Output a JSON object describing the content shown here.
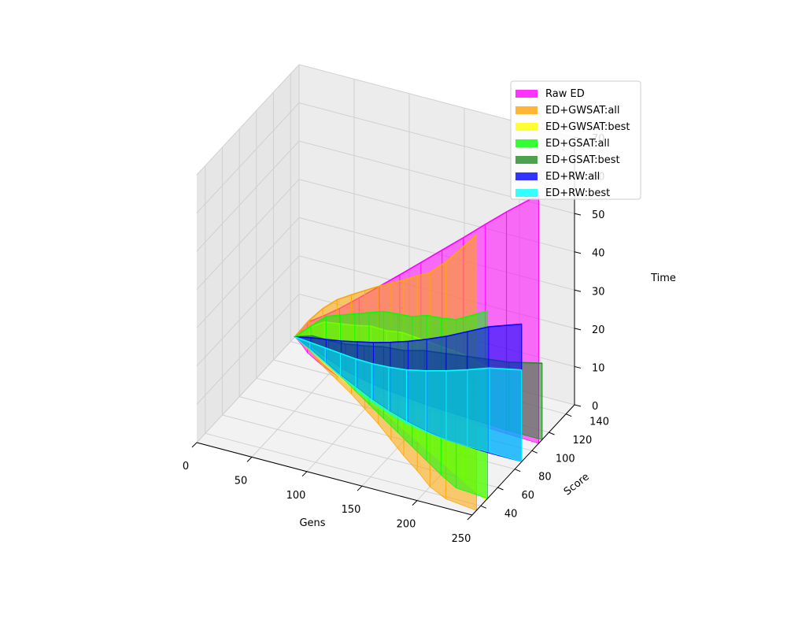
{
  "chart_data": {
    "type": "area",
    "projection": "3d",
    "xlabel": "Gens",
    "ylabel": "Score",
    "zlabel": "Time",
    "xlim": [
      0,
      250
    ],
    "ylim": [
      30,
      150
    ],
    "zlim": [
      0,
      70
    ],
    "xticks": [
      "0",
      "50",
      "100",
      "150",
      "200",
      "250"
    ],
    "yticks": [
      "40",
      "60",
      "80",
      "100",
      "120",
      "140"
    ],
    "zticks": [
      "0",
      "10",
      "20",
      "30",
      "40",
      "50",
      "60",
      "70"
    ],
    "grid": true,
    "legend_position": "upper-right",
    "series": [
      {
        "name": "Raw ED",
        "color": "#ff00ff",
        "points": [
          [
            0,
            145,
            0
          ],
          [
            10,
            140,
            4
          ],
          [
            20,
            134,
            8
          ],
          [
            40,
            126,
            13
          ],
          [
            60,
            120,
            18
          ],
          [
            80,
            117,
            23
          ],
          [
            100,
            115,
            28
          ],
          [
            120,
            113,
            33
          ],
          [
            140,
            112,
            38
          ],
          [
            160,
            111,
            43
          ],
          [
            180,
            110,
            48
          ],
          [
            200,
            110,
            53
          ],
          [
            220,
            109,
            58
          ],
          [
            250,
            108,
            65
          ]
        ]
      },
      {
        "name": "ED+GWSAT:all",
        "color": "#ffa500",
        "points": [
          [
            0,
            145,
            0
          ],
          [
            20,
            136,
            8
          ],
          [
            40,
            126,
            15
          ],
          [
            60,
            117,
            21
          ],
          [
            80,
            108,
            26
          ],
          [
            100,
            98,
            31
          ],
          [
            120,
            88,
            36
          ],
          [
            140,
            77,
            41
          ],
          [
            160,
            66,
            46
          ],
          [
            180,
            56,
            51
          ],
          [
            200,
            45,
            56
          ],
          [
            220,
            38,
            62
          ],
          [
            250,
            35,
            72
          ]
        ]
      },
      {
        "name": "ED+GWSAT:best",
        "color": "#ffff00",
        "points": [
          [
            0,
            145,
            0
          ],
          [
            20,
            137,
            6
          ],
          [
            40,
            128,
            11
          ],
          [
            60,
            120,
            14
          ],
          [
            80,
            112,
            17
          ],
          [
            100,
            105,
            20
          ],
          [
            120,
            98,
            22
          ],
          [
            140,
            90,
            25
          ],
          [
            160,
            82,
            27
          ],
          [
            180,
            74,
            29
          ],
          [
            200,
            66,
            31
          ],
          [
            220,
            58,
            33
          ],
          [
            250,
            46,
            35
          ]
        ]
      },
      {
        "name": "ED+GSAT:all",
        "color": "#00ff00",
        "points": [
          [
            0,
            145,
            0
          ],
          [
            20,
            138,
            6
          ],
          [
            40,
            130,
            12
          ],
          [
            60,
            121,
            16
          ],
          [
            80,
            112,
            20
          ],
          [
            100,
            103,
            24
          ],
          [
            120,
            94,
            28
          ],
          [
            140,
            85,
            31
          ],
          [
            160,
            76,
            34
          ],
          [
            180,
            67,
            38
          ],
          [
            200,
            58,
            41
          ],
          [
            220,
            50,
            44
          ],
          [
            250,
            48,
            49
          ]
        ]
      },
      {
        "name": "ED+GSAT:best",
        "color": "#228b22",
        "points": [
          [
            0,
            145,
            0
          ],
          [
            20,
            140,
            3
          ],
          [
            40,
            133,
            5
          ],
          [
            60,
            127,
            7
          ],
          [
            80,
            123,
            9
          ],
          [
            100,
            120,
            11
          ],
          [
            120,
            118,
            12
          ],
          [
            140,
            116,
            14
          ],
          [
            160,
            115,
            15
          ],
          [
            180,
            114,
            16
          ],
          [
            200,
            113,
            17
          ],
          [
            220,
            112,
            18
          ],
          [
            250,
            112,
            20
          ]
        ]
      },
      {
        "name": "ED+RW:all",
        "color": "#0000ff",
        "points": [
          [
            0,
            145,
            0
          ],
          [
            20,
            138,
            3
          ],
          [
            40,
            130,
            6
          ],
          [
            60,
            122,
            9
          ],
          [
            80,
            115,
            12
          ],
          [
            100,
            108,
            15
          ],
          [
            120,
            102,
            18
          ],
          [
            140,
            97,
            21
          ],
          [
            160,
            93,
            24
          ],
          [
            180,
            90,
            27
          ],
          [
            200,
            89,
            30
          ],
          [
            220,
            88,
            33
          ],
          [
            250,
            88,
            36
          ]
        ]
      },
      {
        "name": "ED+RW:best",
        "color": "#00ffff",
        "points": [
          [
            0,
            145,
            0
          ],
          [
            20,
            137,
            2
          ],
          [
            40,
            129,
            4
          ],
          [
            60,
            121,
            6
          ],
          [
            80,
            113,
            8
          ],
          [
            100,
            106,
            10
          ],
          [
            120,
            100,
            12
          ],
          [
            140,
            95,
            14
          ],
          [
            160,
            92,
            16
          ],
          [
            180,
            90,
            18
          ],
          [
            200,
            89,
            20
          ],
          [
            220,
            89,
            22
          ],
          [
            250,
            88,
            24
          ]
        ]
      }
    ]
  }
}
